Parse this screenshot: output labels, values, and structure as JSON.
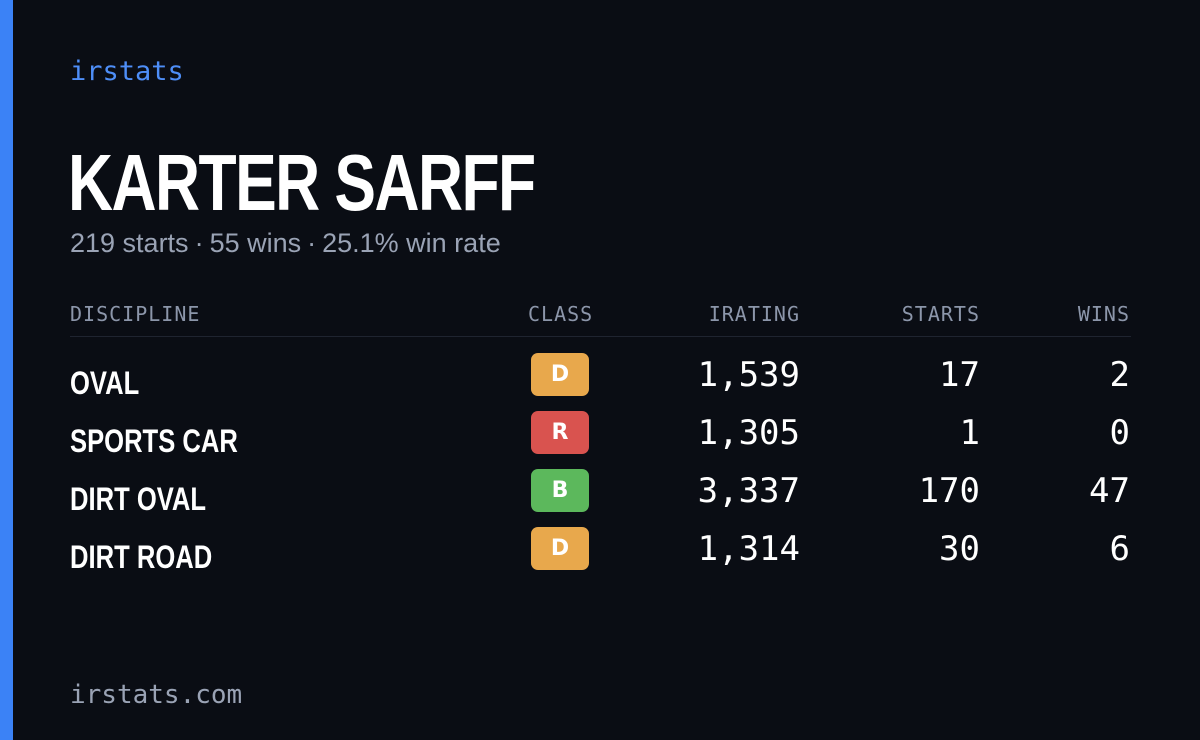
{
  "brand": "irstats",
  "driver": {
    "name": "KARTER SARFF",
    "starts_text": "219 starts",
    "wins_text": "55 wins",
    "winrate_text": "25.1% win rate",
    "separator": "·"
  },
  "table": {
    "headers": {
      "discipline": "DISCIPLINE",
      "class": "CLASS",
      "irating": "IRATING",
      "starts": "STARTS",
      "wins": "WINS"
    },
    "rows": [
      {
        "discipline": "OVAL",
        "class": "D",
        "class_color": "#e8a84c",
        "irating": "1,539",
        "starts": "17",
        "wins": "2"
      },
      {
        "discipline": "SPORTS CAR",
        "class": "R",
        "class_color": "#d9534f",
        "irating": "1,305",
        "starts": "1",
        "wins": "0"
      },
      {
        "discipline": "DIRT OVAL",
        "class": "B",
        "class_color": "#5cb85c",
        "irating": "3,337",
        "starts": "170",
        "wins": "47"
      },
      {
        "discipline": "DIRT ROAD",
        "class": "D",
        "class_color": "#e8a84c",
        "irating": "1,314",
        "starts": "30",
        "wins": "6"
      }
    ]
  },
  "footer": {
    "url": "irstats.com"
  },
  "colors": {
    "background": "#0a0d14",
    "accent": "#3b82f6",
    "brand_text": "#4e8ef7",
    "muted_text": "#9aa3b5"
  }
}
